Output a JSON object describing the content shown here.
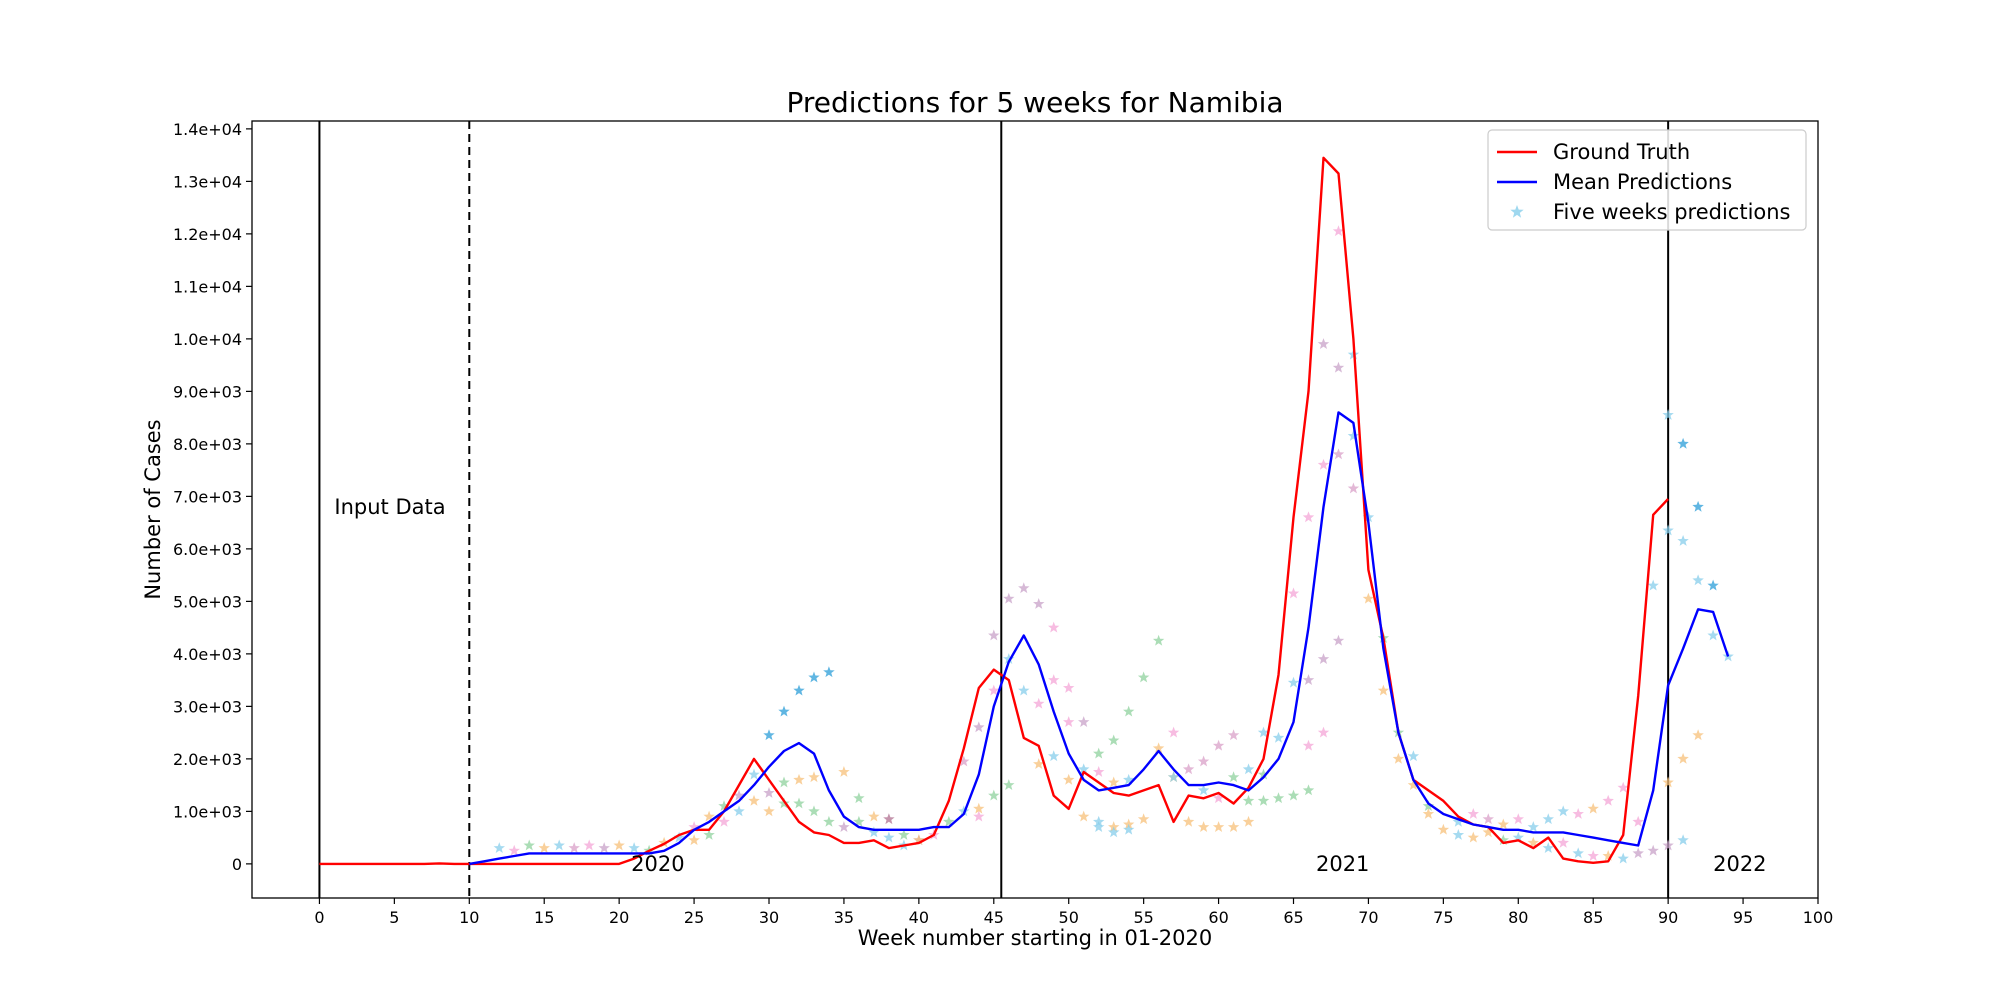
{
  "chart_data": {
    "type": "line",
    "title": "Predictions for 5 weeks for Namibia",
    "xlabel": "Week number starting in 01-2020",
    "ylabel": "Number of Cases",
    "xlim": [
      -4.5,
      100
    ],
    "ylim": [
      -650,
      14150
    ],
    "xticks": [
      0,
      5,
      10,
      15,
      20,
      25,
      30,
      35,
      40,
      45,
      50,
      55,
      60,
      65,
      70,
      75,
      80,
      85,
      90,
      95,
      100
    ],
    "yticks": [
      0,
      1000,
      2000,
      3000,
      4000,
      5000,
      6000,
      7000,
      8000,
      9000,
      10000,
      11000,
      12000,
      13000,
      14000
    ],
    "ytick_labels": [
      "0",
      "1.0e+03",
      "2.0e+03",
      "3.0e+03",
      "4.0e+03",
      "5.0e+03",
      "6.0e+03",
      "7.0e+03",
      "8.0e+03",
      "9.0e+03",
      "1.0e+04",
      "1.1e+04",
      "1.2e+04",
      "1.3e+04",
      "1.4e+04"
    ],
    "grid": false,
    "legend_position": "top-right",
    "vertical_lines": [
      {
        "x": 0,
        "style": "solid"
      },
      {
        "x": 10,
        "style": "dashed"
      },
      {
        "x": 45.5,
        "style": "solid"
      },
      {
        "x": 90,
        "style": "solid"
      }
    ],
    "annotations": [
      {
        "text": "Input Data",
        "x": 1,
        "y": 6800
      },
      {
        "text": "2020",
        "x": 20.8,
        "y": 0
      },
      {
        "text": "2021",
        "x": 66.5,
        "y": 0
      },
      {
        "text": "2022",
        "x": 93,
        "y": 0
      }
    ],
    "series": [
      {
        "name": "Ground Truth",
        "color": "#ff0000",
        "x": [
          0,
          1,
          2,
          3,
          4,
          5,
          6,
          7,
          8,
          9,
          10,
          11,
          12,
          13,
          14,
          15,
          16,
          17,
          18,
          19,
          20,
          21,
          22,
          23,
          24,
          25,
          26,
          27,
          28,
          29,
          30,
          31,
          32,
          33,
          34,
          35,
          36,
          37,
          38,
          39,
          40,
          41,
          42,
          43,
          44,
          45,
          46,
          47,
          48,
          49,
          50,
          51,
          52,
          53,
          54,
          55,
          56,
          57,
          58,
          59,
          60,
          61,
          62,
          63,
          64,
          65,
          66,
          67,
          68,
          69,
          70,
          71,
          72,
          73,
          74,
          75,
          76,
          77,
          78,
          79,
          80,
          81,
          82,
          83,
          84,
          85,
          86,
          87,
          88,
          89,
          90
        ],
        "values": [
          0,
          0,
          0,
          0,
          0,
          0,
          0,
          0,
          10,
          0,
          0,
          0,
          0,
          0,
          0,
          0,
          0,
          0,
          0,
          0,
          0,
          100,
          250,
          380,
          550,
          650,
          650,
          1000,
          1500,
          2000,
          1600,
          1200,
          800,
          600,
          550,
          400,
          400,
          450,
          300,
          350,
          400,
          550,
          1200,
          2200,
          3350,
          3700,
          3500,
          2400,
          2250,
          1300,
          1050,
          1750,
          1550,
          1350,
          1300,
          1400,
          1500,
          800,
          1300,
          1250,
          1350,
          1150,
          1450,
          2000,
          3600,
          6600,
          9000,
          13450,
          13150,
          10000,
          5600,
          4300,
          2500,
          1600,
          1400,
          1200,
          900,
          750,
          700,
          400,
          450,
          300,
          500,
          100,
          50,
          20,
          50,
          550,
          3200,
          6650,
          6950
        ]
      },
      {
        "name": "Mean Predictions",
        "color": "#0000ff",
        "x": [
          10,
          11,
          12,
          13,
          14,
          15,
          16,
          17,
          18,
          19,
          20,
          21,
          22,
          23,
          24,
          25,
          26,
          27,
          28,
          29,
          30,
          31,
          32,
          33,
          34,
          35,
          36,
          37,
          38,
          39,
          40,
          41,
          42,
          43,
          44,
          45,
          46,
          47,
          48,
          49,
          50,
          51,
          52,
          53,
          54,
          55,
          56,
          57,
          58,
          59,
          60,
          61,
          62,
          63,
          64,
          65,
          66,
          67,
          68,
          69,
          70,
          71,
          72,
          73,
          74,
          75,
          76,
          77,
          78,
          79,
          80,
          81,
          82,
          83,
          84,
          85,
          86,
          87,
          88,
          89,
          90,
          91,
          92,
          93,
          94
        ],
        "values": [
          0,
          50,
          100,
          150,
          200,
          200,
          200,
          200,
          200,
          200,
          200,
          200,
          200,
          250,
          400,
          650,
          800,
          1000,
          1200,
          1500,
          1850,
          2150,
          2300,
          2100,
          1400,
          900,
          700,
          650,
          650,
          650,
          650,
          700,
          700,
          950,
          1700,
          3000,
          3850,
          4350,
          3800,
          2900,
          2100,
          1600,
          1400,
          1450,
          1500,
          1800,
          2150,
          1800,
          1500,
          1500,
          1550,
          1500,
          1400,
          1650,
          2000,
          2700,
          4500,
          6800,
          8600,
          8400,
          6500,
          4100,
          2500,
          1600,
          1150,
          950,
          850,
          750,
          700,
          650,
          650,
          600,
          600,
          600,
          550,
          500,
          450,
          400,
          350,
          1400,
          3400,
          4100,
          4850,
          4800,
          3950
        ]
      },
      {
        "name": "Five weeks predictions",
        "color": "#87ceeb",
        "marker": "star",
        "note": "scatter of per-week 5-step predictions (multiple colours, translucent)"
      }
    ],
    "scatter_points": [
      [
        12,
        300,
        "#87ceeb"
      ],
      [
        13,
        250,
        "#f4a6d7"
      ],
      [
        14,
        350,
        "#8fd19e"
      ],
      [
        15,
        300,
        "#f7c07a"
      ],
      [
        16,
        350,
        "#87ceeb"
      ],
      [
        17,
        300,
        "#d9a0c8"
      ],
      [
        18,
        350,
        "#f4a6d7"
      ],
      [
        19,
        300,
        "#c8a2c8"
      ],
      [
        20,
        350,
        "#f7c07a"
      ],
      [
        21,
        300,
        "#87ceeb"
      ],
      [
        22,
        250,
        "#8fd19e"
      ],
      [
        23,
        400,
        "#f7c07a"
      ],
      [
        24,
        500,
        "#87ceeb"
      ],
      [
        25,
        700,
        "#f4a6d7"
      ],
      [
        26,
        900,
        "#f7c07a"
      ],
      [
        27,
        1100,
        "#8fd19e"
      ],
      [
        28,
        1300,
        "#c8a2c8"
      ],
      [
        29,
        1700,
        "#87ceeb"
      ],
      [
        30,
        2450,
        "#2b9ed8"
      ],
      [
        31,
        2900,
        "#2b9ed8"
      ],
      [
        32,
        3300,
        "#2b9ed8"
      ],
      [
        33,
        3550,
        "#2b9ed8"
      ],
      [
        34,
        3650,
        "#2b9ed8"
      ],
      [
        25,
        450,
        "#f7c07a"
      ],
      [
        26,
        550,
        "#8fd19e"
      ],
      [
        27,
        800,
        "#f4a6d7"
      ],
      [
        28,
        1000,
        "#87ceeb"
      ],
      [
        29,
        1200,
        "#f7c07a"
      ],
      [
        30,
        1350,
        "#c8a2c8"
      ],
      [
        31,
        1550,
        "#8fd19e"
      ],
      [
        32,
        1600,
        "#f7c07a"
      ],
      [
        33,
        1650,
        "#f7c07a"
      ],
      [
        35,
        1750,
        "#f7c07a"
      ],
      [
        30,
        1000,
        "#f7c07a"
      ],
      [
        31,
        1150,
        "#8fd19e"
      ],
      [
        32,
        1150,
        "#8fd19e"
      ],
      [
        33,
        1000,
        "#8fd19e"
      ],
      [
        34,
        800,
        "#8fd19e"
      ],
      [
        35,
        700,
        "#c8a2c8"
      ],
      [
        36,
        800,
        "#8fd19e"
      ],
      [
        36,
        1250,
        "#8fd19e"
      ],
      [
        37,
        900,
        "#f7c07a"
      ],
      [
        38,
        850,
        "#b07090"
      ],
      [
        39,
        550,
        "#8fd19e"
      ],
      [
        40,
        450,
        "#c8a2c8"
      ],
      [
        37,
        600,
        "#87ceeb"
      ],
      [
        38,
        500,
        "#87ceeb"
      ],
      [
        39,
        350,
        "#87ceeb"
      ],
      [
        40,
        450,
        "#f7c07a"
      ],
      [
        41,
        550,
        "#f4a6d7"
      ],
      [
        42,
        800,
        "#8fd19e"
      ],
      [
        43,
        1000,
        "#87ceeb"
      ],
      [
        44,
        900,
        "#f4a6d7"
      ],
      [
        44,
        1050,
        "#f7c07a"
      ],
      [
        45,
        1300,
        "#8fd19e"
      ],
      [
        46,
        1500,
        "#8fd19e"
      ],
      [
        43,
        1950,
        "#d9a0c8"
      ],
      [
        44,
        2600,
        "#c8a2c8"
      ],
      [
        45,
        3300,
        "#f4a6d7"
      ],
      [
        45,
        4350,
        "#c8a2c8"
      ],
      [
        46,
        5050,
        "#c8a2c8"
      ],
      [
        47,
        5250,
        "#c8a2c8"
      ],
      [
        48,
        4950,
        "#c8a2c8"
      ],
      [
        49,
        4500,
        "#f4a6d7"
      ],
      [
        50,
        3350,
        "#f4a6d7"
      ],
      [
        46,
        3900,
        "#87ceeb"
      ],
      [
        47,
        3300,
        "#87ceeb"
      ],
      [
        48,
        3050,
        "#f4a6d7"
      ],
      [
        49,
        3500,
        "#f4a6d7"
      ],
      [
        50,
        2700,
        "#f4a6d7"
      ],
      [
        51,
        2700,
        "#c8a2c8"
      ],
      [
        52,
        2100,
        "#8fd19e"
      ],
      [
        48,
        1900,
        "#f7c07a"
      ],
      [
        49,
        2050,
        "#87ceeb"
      ],
      [
        50,
        1600,
        "#f7c07a"
      ],
      [
        51,
        900,
        "#f7c07a"
      ],
      [
        52,
        800,
        "#87ceeb"
      ],
      [
        53,
        700,
        "#f7c07a"
      ],
      [
        54,
        750,
        "#f7c07a"
      ],
      [
        55,
        850,
        "#f7c07a"
      ],
      [
        51,
        1800,
        "#87ceeb"
      ],
      [
        52,
        1750,
        "#f4a6d7"
      ],
      [
        53,
        2350,
        "#8fd19e"
      ],
      [
        54,
        2900,
        "#8fd19e"
      ],
      [
        55,
        3550,
        "#8fd19e"
      ],
      [
        56,
        4250,
        "#8fd19e"
      ],
      [
        53,
        1550,
        "#f7c07a"
      ],
      [
        54,
        1600,
        "#87ceeb"
      ],
      [
        52,
        700,
        "#87ceeb"
      ],
      [
        53,
        600,
        "#87ceeb"
      ],
      [
        54,
        650,
        "#87ceeb"
      ],
      [
        56,
        2200,
        "#f7c07a"
      ],
      [
        57,
        2500,
        "#f4a6d7"
      ],
      [
        57,
        1650,
        "#f7c07a"
      ],
      [
        58,
        1800,
        "#d9a0c8"
      ],
      [
        59,
        1950,
        "#d9a0c8"
      ],
      [
        60,
        2250,
        "#d9a0c8"
      ],
      [
        61,
        2450,
        "#d9a0c8"
      ],
      [
        57,
        1650,
        "#87ceeb"
      ],
      [
        58,
        800,
        "#f7c07a"
      ],
      [
        59,
        700,
        "#f7c07a"
      ],
      [
        60,
        700,
        "#f7c07a"
      ],
      [
        61,
        700,
        "#f7c07a"
      ],
      [
        62,
        800,
        "#f7c07a"
      ],
      [
        59,
        1400,
        "#87ceeb"
      ],
      [
        60,
        1250,
        "#f4a6d7"
      ],
      [
        61,
        1650,
        "#8fd19e"
      ],
      [
        62,
        1800,
        "#87ceeb"
      ],
      [
        63,
        2500,
        "#87ceeb"
      ],
      [
        62,
        1200,
        "#8fd19e"
      ],
      [
        63,
        1200,
        "#8fd19e"
      ],
      [
        64,
        1250,
        "#8fd19e"
      ],
      [
        65,
        1300,
        "#8fd19e"
      ],
      [
        66,
        1400,
        "#8fd19e"
      ],
      [
        63,
        1700,
        "#8fd19e"
      ],
      [
        64,
        2400,
        "#87ceeb"
      ],
      [
        65,
        3450,
        "#87ceeb"
      ],
      [
        65,
        5150,
        "#f4a6d7"
      ],
      [
        66,
        6600,
        "#f4a6d7"
      ],
      [
        66,
        2250,
        "#f4a6d7"
      ],
      [
        67,
        2500,
        "#f4a6d7"
      ],
      [
        66,
        3500,
        "#c8a2c8"
      ],
      [
        67,
        3900,
        "#c8a2c8"
      ],
      [
        68,
        4250,
        "#c8a2c8"
      ],
      [
        67,
        7600,
        "#f4a6d7"
      ],
      [
        67,
        9900,
        "#c8a2c8"
      ],
      [
        68,
        9450,
        "#c8a2c8"
      ],
      [
        68,
        7800,
        "#d9a0c8"
      ],
      [
        69,
        7150,
        "#d9a0c8"
      ],
      [
        68,
        12050,
        "#f4a6d7"
      ],
      [
        69,
        9700,
        "#87ceeb"
      ],
      [
        70,
        6600,
        "#87ceeb"
      ],
      [
        69,
        8150,
        "#87ceeb"
      ],
      [
        70,
        5050,
        "#f7c07a"
      ],
      [
        71,
        4300,
        "#8fd19e"
      ],
      [
        71,
        3300,
        "#f7c07a"
      ],
      [
        72,
        2500,
        "#8fd19e"
      ],
      [
        72,
        2000,
        "#f7c07a"
      ],
      [
        73,
        1500,
        "#f7c07a"
      ],
      [
        73,
        2050,
        "#87ceeb"
      ],
      [
        74,
        950,
        "#f7c07a"
      ],
      [
        74,
        1100,
        "#8fd19e"
      ],
      [
        75,
        650,
        "#f7c07a"
      ],
      [
        76,
        800,
        "#87ceeb"
      ],
      [
        77,
        950,
        "#f4a6d7"
      ],
      [
        78,
        850,
        "#d9a0c8"
      ],
      [
        79,
        750,
        "#f7c07a"
      ],
      [
        80,
        850,
        "#f4a6d7"
      ],
      [
        76,
        550,
        "#87ceeb"
      ],
      [
        77,
        500,
        "#f7c07a"
      ],
      [
        78,
        600,
        "#f7c07a"
      ],
      [
        79,
        450,
        "#8fd19e"
      ],
      [
        80,
        500,
        "#87ceeb"
      ],
      [
        81,
        700,
        "#87ceeb"
      ],
      [
        82,
        850,
        "#87ceeb"
      ],
      [
        83,
        1000,
        "#87ceeb"
      ],
      [
        84,
        950,
        "#f4a6d7"
      ],
      [
        85,
        1050,
        "#f7c07a"
      ],
      [
        86,
        1200,
        "#f4a6d7"
      ],
      [
        87,
        1450,
        "#f4a6d7"
      ],
      [
        81,
        400,
        "#f7c07a"
      ],
      [
        82,
        300,
        "#87ceeb"
      ],
      [
        83,
        400,
        "#f4a6d7"
      ],
      [
        84,
        200,
        "#87ceeb"
      ],
      [
        85,
        150,
        "#f4a6d7"
      ],
      [
        86,
        150,
        "#f7c07a"
      ],
      [
        87,
        100,
        "#87ceeb"
      ],
      [
        88,
        200,
        "#c8a2c8"
      ],
      [
        88,
        800,
        "#f4a6d7"
      ],
      [
        89,
        250,
        "#c8a2c8"
      ],
      [
        89,
        5300,
        "#87ceeb"
      ],
      [
        90,
        6350,
        "#87ceeb"
      ],
      [
        90,
        8550,
        "#87ceeb"
      ],
      [
        91,
        8000,
        "#2b9ed8"
      ],
      [
        92,
        6800,
        "#2b9ed8"
      ],
      [
        93,
        5300,
        "#2b9ed8"
      ],
      [
        91,
        6150,
        "#87ceeb"
      ],
      [
        92,
        5400,
        "#87ceeb"
      ],
      [
        93,
        4350,
        "#87ceeb"
      ],
      [
        94,
        3950,
        "#87ceeb"
      ],
      [
        90,
        1550,
        "#f7c07a"
      ],
      [
        91,
        2000,
        "#f7c07a"
      ],
      [
        92,
        2450,
        "#f7c07a"
      ],
      [
        90,
        350,
        "#c8a2c8"
      ],
      [
        91,
        450,
        "#87ceeb"
      ]
    ]
  }
}
